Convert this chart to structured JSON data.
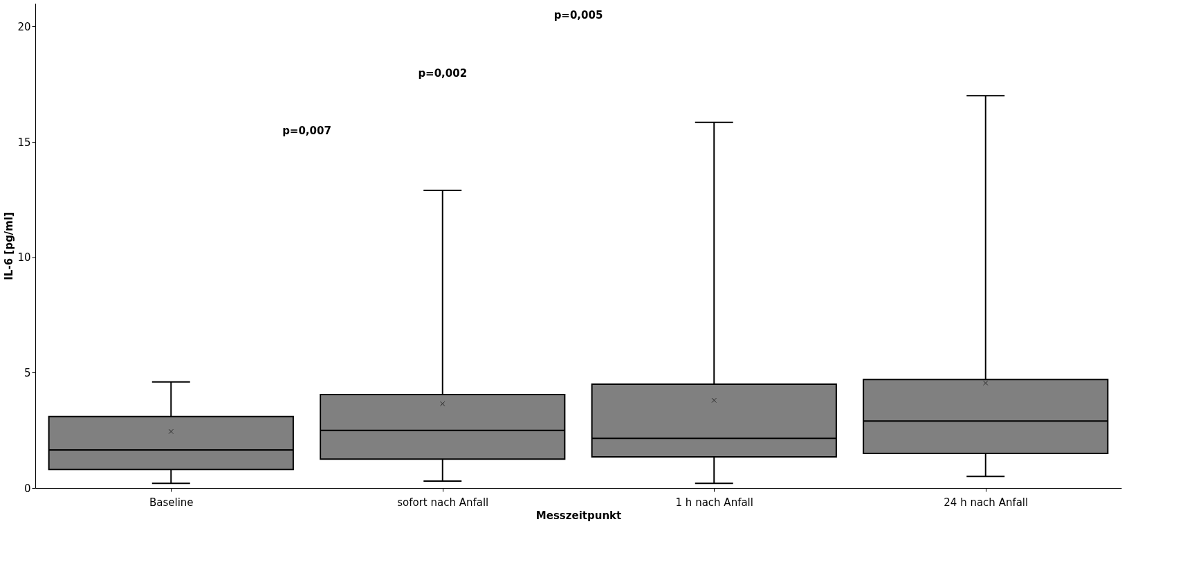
{
  "chart_data": {
    "type": "box",
    "xlabel": "Messzeitpunkt",
    "ylabel": "IL-6 [pg/ml]",
    "categories": [
      "Baseline",
      "sofort nach Anfall",
      "1 h nach Anfall",
      "24 h nach Anfall"
    ],
    "color": "#808080",
    "boxes": [
      {
        "low": 0.2,
        "q1": 0.8,
        "median": 1.65,
        "q3": 3.1,
        "high": 4.6,
        "mean": 2.45
      },
      {
        "low": 0.3,
        "q1": 1.25,
        "median": 2.5,
        "q3": 4.05,
        "high": 12.9,
        "mean": 3.65
      },
      {
        "low": 0.2,
        "q1": 1.35,
        "median": 2.15,
        "q3": 4.5,
        "high": 15.85,
        "mean": 3.8
      },
      {
        "low": 0.5,
        "q1": 1.5,
        "median": 2.9,
        "q3": 4.7,
        "high": 17.0,
        "mean": 4.55
      }
    ],
    "ylim": [
      0,
      21
    ],
    "yticks": [
      0,
      5,
      10,
      15,
      20
    ],
    "grid": false,
    "annotations": [
      "p=0,007",
      "p=0,002",
      "p=0,005"
    ]
  }
}
